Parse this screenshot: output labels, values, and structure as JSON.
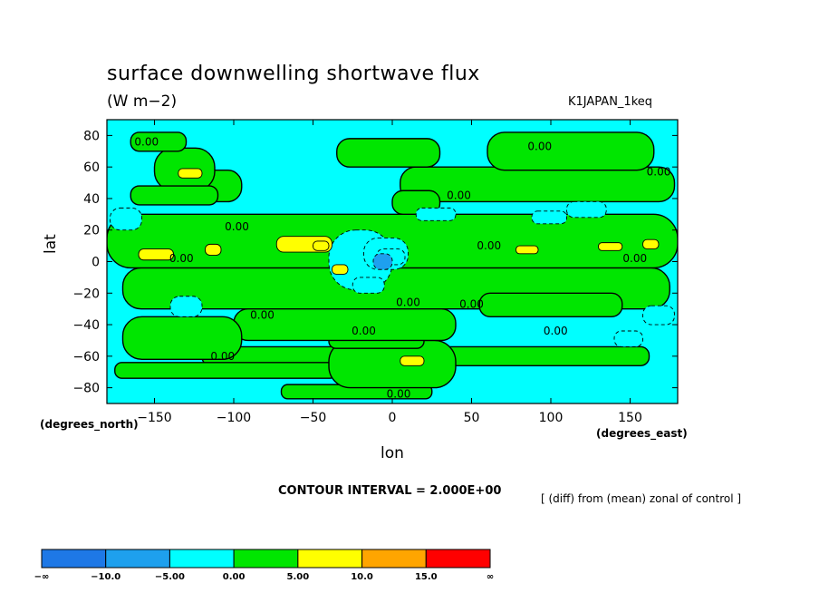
{
  "header": {
    "title": "surface downwelling shortwave flux",
    "units": "(W m−2)",
    "run_id": "K1JAPAN_1keq"
  },
  "footer": {
    "contour_interval": "CONTOUR INTERVAL = 2.000E+00",
    "note": "[ (diff) from (mean) zonal of control ]"
  },
  "chart_data": {
    "type": "heatmap",
    "title": "surface downwelling shortwave flux",
    "subtitle": "(W m−2)",
    "xlabel": "lon",
    "ylabel": "lat",
    "x_unit_label": "(degrees_east)",
    "y_unit_label": "(degrees_north)",
    "xlim": [
      -180,
      180
    ],
    "ylim": [
      -90,
      90
    ],
    "x_ticks": [
      -150,
      -100,
      -50,
      0,
      50,
      100,
      150
    ],
    "x_tick_labels": [
      "−150",
      "−100",
      "−50",
      "0",
      "50",
      "100",
      "150"
    ],
    "y_ticks": [
      -80,
      -60,
      -40,
      -20,
      0,
      20,
      40,
      60,
      80
    ],
    "y_tick_labels": [
      "−80",
      "−60",
      "−40",
      "−20",
      "0",
      "20",
      "40",
      "60",
      "80"
    ],
    "contour_interval": 2.0,
    "color_levels": [
      {
        "from": "-inf",
        "to": -10,
        "color": "#1e78e6"
      },
      {
        "from": -10,
        "to": -5,
        "color": "#1ea0ee"
      },
      {
        "from": -5,
        "to": 0,
        "color": "#00ffff"
      },
      {
        "from": 0,
        "to": 5,
        "color": "#00e600"
      },
      {
        "from": 5,
        "to": 10,
        "color": "#ffff00"
      },
      {
        "from": 10,
        "to": 15,
        "color": "#ffa500"
      },
      {
        "from": 15,
        "to": "inf",
        "color": "#ff0000"
      }
    ],
    "colorbar_labels": [
      "−∞",
      "−10.0",
      "−5.00",
      "0.00",
      "5.00",
      "10.0",
      "15.0",
      "∞"
    ],
    "contour_labels": [
      {
        "lon": -155,
        "lat": 76,
        "text": "0.00"
      },
      {
        "lon": 93,
        "lat": 73,
        "text": "0.00"
      },
      {
        "lon": 168,
        "lat": 57,
        "text": "0.00"
      },
      {
        "lon": 42,
        "lat": 42,
        "text": "0.00"
      },
      {
        "lon": -98,
        "lat": 22,
        "text": "0.00"
      },
      {
        "lon": 61,
        "lat": 10,
        "text": "0.00"
      },
      {
        "lon": -133,
        "lat": 2,
        "text": "0.00"
      },
      {
        "lon": 153,
        "lat": 2,
        "text": "0.00"
      },
      {
        "lon": 10,
        "lat": -26,
        "text": "0.00"
      },
      {
        "lon": 50,
        "lat": -27,
        "text": "0.00"
      },
      {
        "lon": -82,
        "lat": -34,
        "text": "0.00"
      },
      {
        "lon": -18,
        "lat": -44,
        "text": "0.00"
      },
      {
        "lon": 103,
        "lat": -44,
        "text": "0.00"
      },
      {
        "lon": -107,
        "lat": -60,
        "text": "0.00"
      },
      {
        "lon": 4,
        "lat": -84,
        "text": "0.00"
      }
    ],
    "regions": [
      {
        "level": 0,
        "lon": [
          -120,
          162
        ],
        "lat": [
          -66,
          -54
        ]
      },
      {
        "level": 0,
        "lon": [
          -175,
          -35
        ],
        "lat": [
          -74,
          -64
        ]
      },
      {
        "level": 0,
        "lon": [
          -70,
          25
        ],
        "lat": [
          -87,
          -78
        ]
      },
      {
        "level": 0,
        "lon": [
          -40,
          40
        ],
        "lat": [
          -80,
          -50
        ]
      },
      {
        "level": 0,
        "lon": [
          -40,
          20
        ],
        "lat": [
          -55,
          -45
        ]
      },
      {
        "level": 0,
        "lon": [
          -170,
          175
        ],
        "lat": [
          -30,
          -4
        ]
      },
      {
        "level": 0,
        "lon": [
          -180,
          180
        ],
        "lat": [
          -4,
          30
        ]
      },
      {
        "level": 0,
        "lon": [
          -100,
          40
        ],
        "lat": [
          -50,
          -30
        ]
      },
      {
        "level": 0,
        "lon": [
          55,
          145
        ],
        "lat": [
          -35,
          -20
        ]
      },
      {
        "level": 0,
        "lon": [
          -170,
          -95
        ],
        "lat": [
          -62,
          -35
        ]
      },
      {
        "level": 0,
        "lon": [
          5,
          178
        ],
        "lat": [
          38,
          60
        ]
      },
      {
        "level": 0,
        "lon": [
          -130,
          -95
        ],
        "lat": [
          38,
          58
        ]
      },
      {
        "level": 0,
        "lon": [
          -150,
          -112
        ],
        "lat": [
          45,
          72
        ]
      },
      {
        "level": 0,
        "lon": [
          -165,
          -130
        ],
        "lat": [
          70,
          82
        ]
      },
      {
        "level": 0,
        "lon": [
          -35,
          30
        ],
        "lat": [
          60,
          78
        ]
      },
      {
        "level": 0,
        "lon": [
          60,
          165
        ],
        "lat": [
          58,
          82
        ]
      },
      {
        "level": 0,
        "lon": [
          0,
          30
        ],
        "lat": [
          30,
          45
        ]
      },
      {
        "level": 0,
        "lon": [
          -165,
          -110
        ],
        "lat": [
          36,
          48
        ]
      },
      {
        "level": -1,
        "lon": [
          -40,
          0
        ],
        "lat": [
          -18,
          20
        ]
      },
      {
        "level": -1,
        "lon": [
          -178,
          -158
        ],
        "lat": [
          20,
          34
        ]
      },
      {
        "level": -1,
        "lon": [
          -140,
          -120
        ],
        "lat": [
          -35,
          -22
        ]
      },
      {
        "level": -1,
        "lon": [
          -18,
          10
        ],
        "lat": [
          -5,
          15
        ]
      },
      {
        "level": -1,
        "lon": [
          -10,
          8
        ],
        "lat": [
          -2,
          8
        ]
      },
      {
        "level": -1,
        "lon": [
          15,
          40
        ],
        "lat": [
          26,
          34
        ]
      },
      {
        "level": -1,
        "lon": [
          110,
          135
        ],
        "lat": [
          28,
          38
        ]
      },
      {
        "level": -1,
        "lon": [
          158,
          178
        ],
        "lat": [
          -40,
          -28
        ]
      },
      {
        "level": -1,
        "lon": [
          140,
          158
        ],
        "lat": [
          -54,
          -44
        ]
      },
      {
        "level": -1,
        "lon": [
          88,
          110
        ],
        "lat": [
          24,
          32
        ]
      },
      {
        "level": -1,
        "lon": [
          -25,
          -5
        ],
        "lat": [
          -20,
          -10
        ]
      },
      {
        "level": -2,
        "lon": [
          -12,
          0
        ],
        "lat": [
          -5,
          5
        ]
      },
      {
        "level": 1,
        "lon": [
          -160,
          -138
        ],
        "lat": [
          1,
          8
        ]
      },
      {
        "level": 1,
        "lon": [
          -118,
          -108
        ],
        "lat": [
          4,
          11
        ]
      },
      {
        "level": 1,
        "lon": [
          -73,
          -38
        ],
        "lat": [
          6,
          16
        ]
      },
      {
        "level": 1,
        "lon": [
          -38,
          -28
        ],
        "lat": [
          -8,
          -2
        ]
      },
      {
        "level": 1,
        "lon": [
          -135,
          -120
        ],
        "lat": [
          53,
          59
        ]
      },
      {
        "level": 1,
        "lon": [
          5,
          20
        ],
        "lat": [
          -66,
          -60
        ]
      },
      {
        "level": 1,
        "lon": [
          130,
          145
        ],
        "lat": [
          7,
          12
        ]
      },
      {
        "level": 1,
        "lon": [
          158,
          168
        ],
        "lat": [
          8,
          14
        ]
      },
      {
        "level": 1,
        "lon": [
          78,
          92
        ],
        "lat": [
          5,
          10
        ]
      },
      {
        "level": 1,
        "lon": [
          -50,
          -40
        ],
        "lat": [
          7,
          13
        ]
      }
    ]
  }
}
